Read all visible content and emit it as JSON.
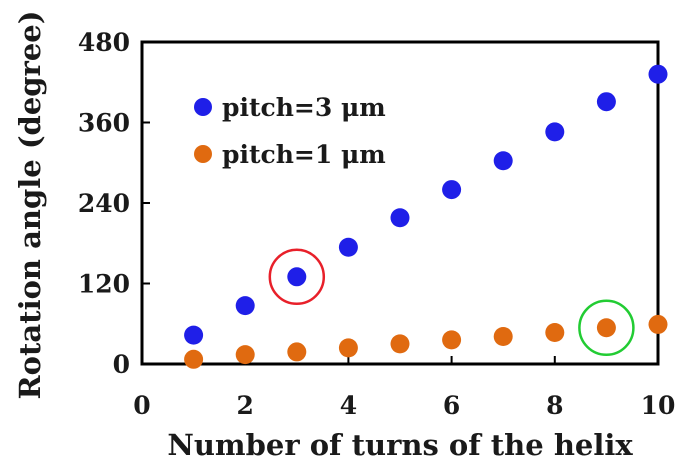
{
  "chart_data": {
    "type": "scatter",
    "xlabel": "Number of turns of the helix",
    "ylabel": "Rotation angle (degree)",
    "xlim": [
      0,
      10
    ],
    "ylim": [
      0,
      480
    ],
    "xticks": [
      "0",
      "2",
      "4",
      "6",
      "8",
      "10"
    ],
    "yticks": [
      "0",
      "120",
      "240",
      "360",
      "480"
    ],
    "grid": false,
    "legend": "top-left",
    "series": [
      {
        "name": "pitch=3 μm",
        "color": "#1f1fe8",
        "x": [
          1,
          2,
          3,
          4,
          5,
          6,
          7,
          8,
          9,
          10
        ],
        "y": [
          43,
          87,
          130,
          174,
          218,
          260,
          303,
          346,
          391,
          432
        ]
      },
      {
        "name": "pitch=1 μm",
        "color": "#e06a10",
        "x": [
          1,
          2,
          3,
          4,
          5,
          6,
          7,
          8,
          9,
          10
        ],
        "y": [
          7,
          14,
          18,
          24,
          30,
          36,
          41,
          47,
          54,
          59
        ]
      }
    ],
    "annotations": [
      {
        "type": "circle",
        "color": "#e8202a",
        "x": 3,
        "y": 130
      },
      {
        "type": "circle",
        "color": "#22cc33",
        "x": 9,
        "y": 54
      }
    ]
  }
}
